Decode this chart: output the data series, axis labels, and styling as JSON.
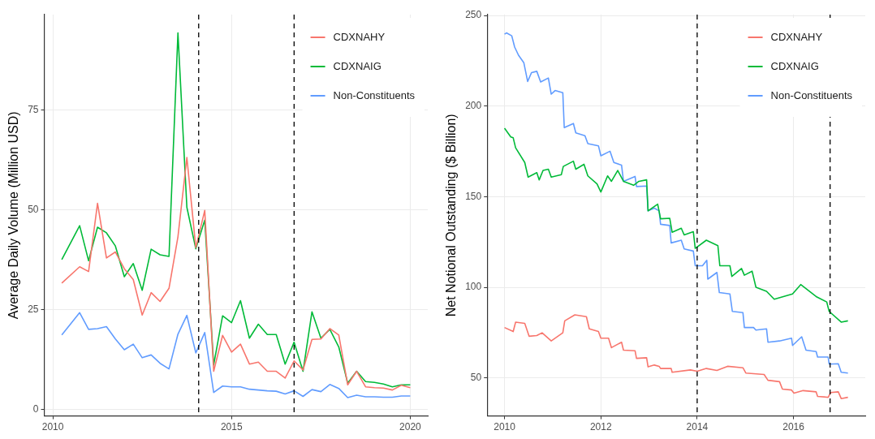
{
  "chart_data": [
    {
      "type": "line",
      "ylabel": "Average Daily Volume (Million USD)",
      "xlim": [
        2009.76,
        2020.49
      ],
      "xticks": [
        2010,
        2015,
        2020
      ],
      "ylim": [
        -1.6,
        99
      ],
      "yticks": [
        0,
        25,
        50,
        75
      ],
      "grid": true,
      "legend": "top right",
      "marker": "none",
      "line_style": "solid",
      "x": [
        2010.25,
        2010.75,
        2011,
        2011.25,
        2011.5,
        2011.75,
        2012,
        2012.25,
        2012.5,
        2012.75,
        2013,
        2013.25,
        2013.5,
        2013.75,
        2014,
        2014.25,
        2014.5,
        2014.75,
        2015,
        2015.25,
        2015.5,
        2015.75,
        2016,
        2016.25,
        2016.5,
        2016.75,
        2017,
        2017.25,
        2017.5,
        2017.75,
        2018,
        2018.25,
        2018.5,
        2018.75,
        2019,
        2019.25,
        2019.5,
        2019.75,
        2020
      ],
      "series": [
        {
          "name": "CDXNAHY",
          "color": "#f8766d",
          "values": [
            31.7,
            35.8,
            34.6,
            51.7,
            38.0,
            39.5,
            35.3,
            32.6,
            23.7,
            29.3,
            27.1,
            30.4,
            43.3,
            63.2,
            40.6,
            49.9,
            9.6,
            18.6,
            14.4,
            16.4,
            11.4,
            11.9,
            9.6,
            9.6,
            7.9,
            12.2,
            9.9,
            17.6,
            17.7,
            20.3,
            18.7,
            6.2,
            9.6,
            5.7,
            5.5,
            5.4,
            4.9,
            6.1,
            5.5
          ]
        },
        {
          "name": "CDXNAIG",
          "color": "#00ba38",
          "values": [
            37.6,
            46.1,
            37.3,
            45.7,
            44.3,
            41.0,
            33.3,
            36.6,
            29.9,
            40.2,
            38.8,
            38.4,
            94.4,
            50.7,
            40.3,
            47.5,
            11.2,
            23.5,
            21.8,
            27.3,
            17.9,
            21.4,
            18.8,
            18.8,
            11.4,
            16.9,
            9.6,
            24.5,
            17.9,
            20.1,
            15.7,
            6.6,
            9.6,
            7.0,
            6.8,
            6.4,
            5.7,
            6.2,
            6.2
          ]
        },
        {
          "name": "Non-Constituents",
          "color": "#619cff",
          "values": [
            18.7,
            24.3,
            20.1,
            20.3,
            20.8,
            17.7,
            15.0,
            16.4,
            13.0,
            13.7,
            11.6,
            10.2,
            18.9,
            23.6,
            14.2,
            19.3,
            4.3,
            5.9,
            5.7,
            5.7,
            5.1,
            4.9,
            4.7,
            4.6,
            3.9,
            4.7,
            3.3,
            5.0,
            4.5,
            6.3,
            5.3,
            3.0,
            3.6,
            3.2,
            3.2,
            3.1,
            3.1,
            3.4,
            3.4
          ]
        }
      ],
      "ref_lines": [
        {
          "axis": "x",
          "value": 2014.08,
          "color": "#000000",
          "line_style": "dashed"
        },
        {
          "axis": "x",
          "value": 2016.75,
          "color": "#000000",
          "line_style": "dashed"
        }
      ]
    },
    {
      "type": "line",
      "ylabel": "Net Notional Outstanding ($ Billion)",
      "xlim": [
        2009.64,
        2017.49
      ],
      "xticks": [
        2010,
        2012,
        2014,
        2016
      ],
      "ylim": [
        29,
        250.5
      ],
      "yticks": [
        50,
        100,
        150,
        200,
        250
      ],
      "grid": true,
      "legend": "top right",
      "marker": "none",
      "line_style": "solid",
      "series": [
        {
          "name": "CDXNAHY",
          "color": "#f8766d",
          "x": [
            2010.0,
            2010.18,
            2010.23,
            2010.42,
            2010.51,
            2010.67,
            2010.78,
            2010.97,
            2011.21,
            2011.25,
            2011.46,
            2011.7,
            2011.76,
            2011.95,
            2012.0,
            2012.16,
            2012.22,
            2012.43,
            2012.47,
            2012.71,
            2012.74,
            2012.95,
            2012.98,
            2013.11,
            2013.21,
            2013.24,
            2013.46,
            2013.48,
            2013.86,
            2014.0,
            2014.19,
            2014.41,
            2014.63,
            2014.95,
            2015.01,
            2015.39,
            2015.47,
            2015.71,
            2015.77,
            2015.96,
            2016.01,
            2016.2,
            2016.47,
            2016.5,
            2016.72,
            2016.77,
            2016.93,
            2016.99,
            2017.13
          ],
          "values": [
            77.8,
            75.6,
            80.8,
            80.1,
            73,
            73.4,
            74.9,
            70.4,
            74.9,
            81.5,
            84.8,
            83.8,
            77.1,
            75.6,
            71.9,
            71.9,
            66.7,
            69.7,
            65.3,
            65,
            60.8,
            61.1,
            56.1,
            57.1,
            56.4,
            55.2,
            55.2,
            53.1,
            54.4,
            53.7,
            55.2,
            54.1,
            56.4,
            55.6,
            52.7,
            51.9,
            48.7,
            47.9,
            43.8,
            43.3,
            41.6,
            43,
            42.3,
            39.8,
            39.3,
            41.9,
            42.3,
            38.6,
            39.3
          ]
        },
        {
          "name": "CDXNAIG",
          "color": "#00ba38",
          "x": [
            2010.0,
            2010.13,
            2010.18,
            2010.23,
            2010.42,
            2010.49,
            2010.67,
            2010.72,
            2010.8,
            2010.91,
            2010.97,
            2011.18,
            2011.22,
            2011.43,
            2011.48,
            2011.65,
            2011.73,
            2011.92,
            2012.0,
            2012.14,
            2012.22,
            2012.35,
            2012.47,
            2012.68,
            2012.79,
            2012.95,
            2012.98,
            2013.18,
            2013.24,
            2013.43,
            2013.48,
            2013.67,
            2013.73,
            2013.92,
            2013.96,
            2014.19,
            2014.43,
            2014.47,
            2014.68,
            2014.72,
            2014.92,
            2014.98,
            2015.14,
            2015.22,
            2015.44,
            2015.6,
            2015.98,
            2016.15,
            2016.47,
            2016.69,
            2016.74,
            2016.99,
            2017.13
          ],
          "values": [
            187.8,
            183,
            182.5,
            177,
            168.9,
            160.8,
            163.3,
            159.3,
            164.5,
            165.2,
            160.8,
            162.2,
            166.7,
            169.6,
            165.2,
            167.9,
            161.5,
            157.1,
            152.6,
            161.5,
            158.5,
            164.5,
            158.5,
            156.3,
            158.5,
            159.3,
            142.2,
            145.9,
            137.8,
            138.1,
            130.4,
            132.6,
            128.9,
            130.7,
            121.5,
            126,
            123,
            111.9,
            111.9,
            106,
            110.4,
            106.7,
            108.9,
            100,
            97.8,
            93.4,
            96.3,
            101.5,
            94.9,
            91.9,
            86.7,
            80.8,
            81.5
          ]
        },
        {
          "name": "Non-Constituents",
          "color": "#619cff",
          "x": [
            2010.0,
            2010.04,
            2010.15,
            2010.21,
            2010.29,
            2010.4,
            2010.48,
            2010.56,
            2010.67,
            2010.75,
            2010.91,
            2010.97,
            2011.05,
            2011.21,
            2011.24,
            2011.43,
            2011.48,
            2011.67,
            2011.73,
            2011.95,
            2012.0,
            2012.19,
            2012.27,
            2012.43,
            2012.47,
            2012.71,
            2012.74,
            2012.95,
            2012.98,
            2013.11,
            2013.21,
            2013.24,
            2013.43,
            2013.46,
            2013.67,
            2013.73,
            2013.92,
            2013.96,
            2014.11,
            2014.2,
            2014.22,
            2014.41,
            2014.46,
            2014.68,
            2014.73,
            2014.95,
            2014.98,
            2015.17,
            2015.22,
            2015.44,
            2015.47,
            2015.71,
            2015.96,
            2015.98,
            2016.17,
            2016.26,
            2016.47,
            2016.5,
            2016.72,
            2016.74,
            2016.93,
            2016.99,
            2017.13
          ],
          "values": [
            239.7,
            240.4,
            238.8,
            232.6,
            228.1,
            224,
            213.6,
            218.5,
            219.2,
            213.3,
            215.5,
            206.6,
            208.6,
            207.4,
            188.1,
            190.4,
            185.2,
            183.7,
            179.3,
            178.1,
            172.6,
            175.1,
            168.9,
            167.4,
            158.5,
            161.2,
            155.6,
            155.9,
            142.2,
            143.7,
            142.2,
            134.8,
            134.1,
            124.5,
            126,
            121.2,
            120,
            111.9,
            111.9,
            114.9,
            104.5,
            108.2,
            97.1,
            96.3,
            86.7,
            86,
            77.8,
            77.8,
            76.4,
            77.1,
            69.7,
            70.4,
            71.9,
            67.9,
            72.7,
            65.3,
            64.5,
            61.5,
            61.5,
            57.6,
            57.8,
            53.1,
            52.7
          ]
        }
      ],
      "ref_lines": [
        {
          "axis": "x",
          "value": 2014.0,
          "color": "#000000",
          "line_style": "dashed"
        },
        {
          "axis": "x",
          "value": 2016.76,
          "color": "#000000",
          "line_style": "dashed"
        }
      ]
    }
  ]
}
